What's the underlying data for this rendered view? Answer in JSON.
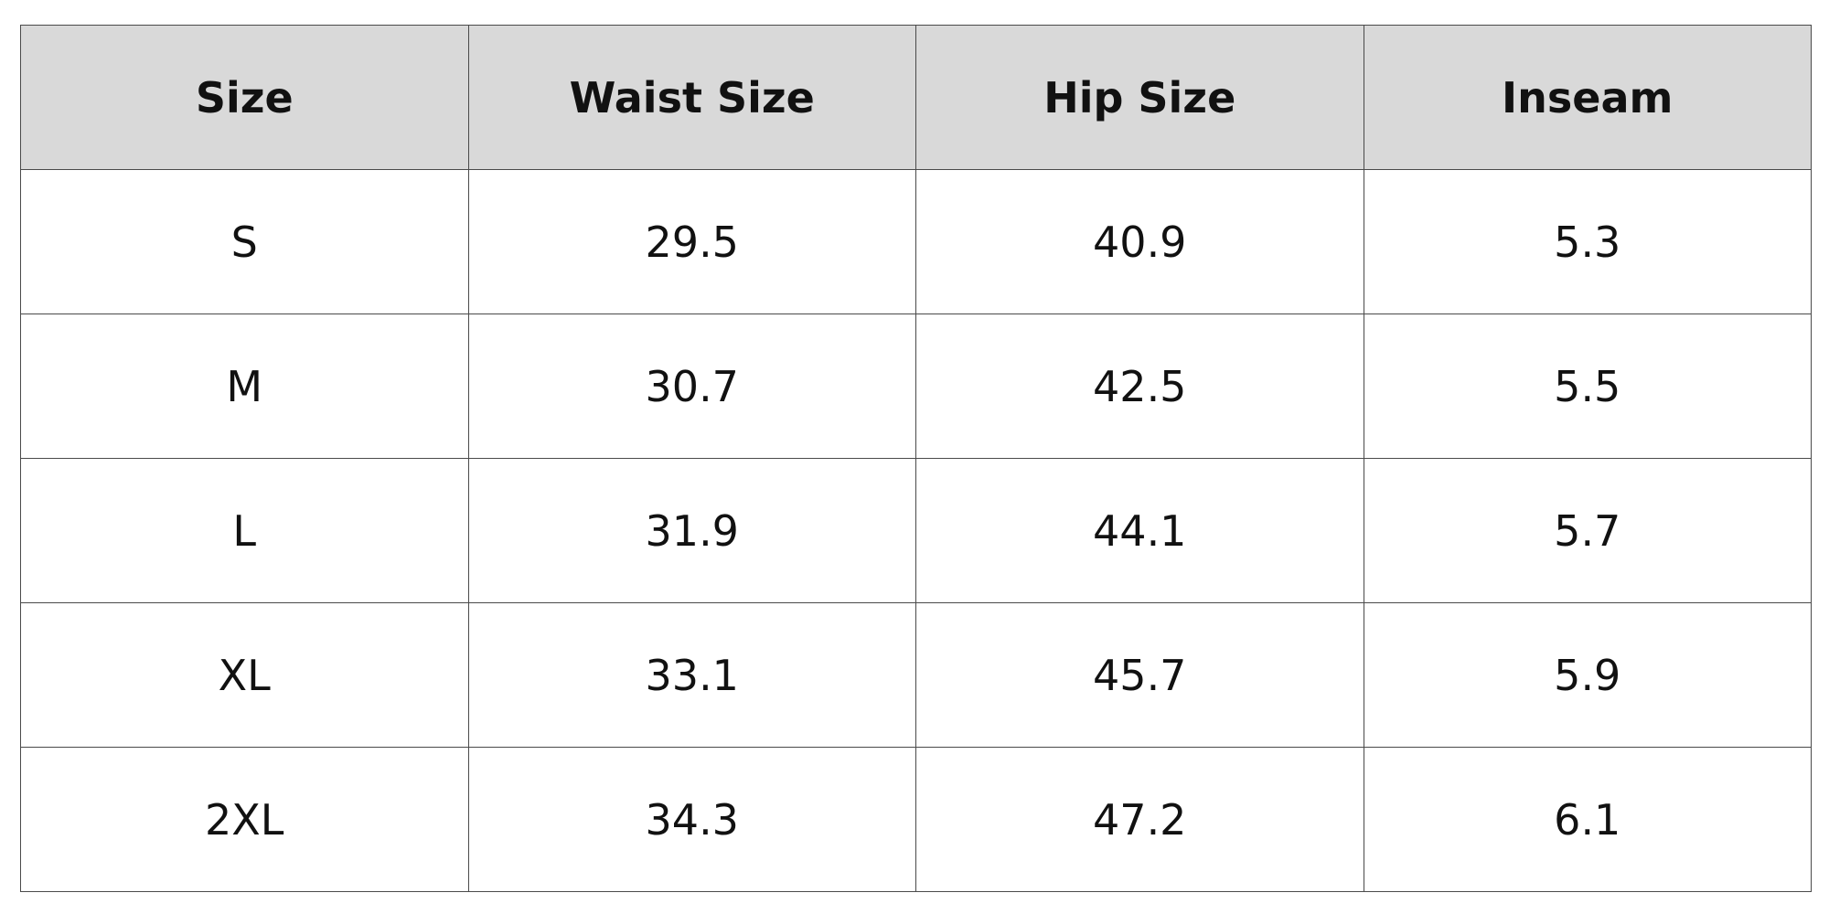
{
  "table": {
    "header": [
      "Size",
      "Waist Size",
      "Hip Size",
      "Inseam"
    ],
    "rows": [
      [
        "S",
        29.5,
        40.9,
        5.3
      ],
      [
        "M",
        30.7,
        42.5,
        5.5
      ],
      [
        "L",
        31.9,
        44.1,
        5.7
      ],
      [
        "XL",
        33.1,
        45.7,
        5.9
      ],
      [
        "2XL",
        34.3,
        47.2,
        6.1
      ]
    ]
  }
}
